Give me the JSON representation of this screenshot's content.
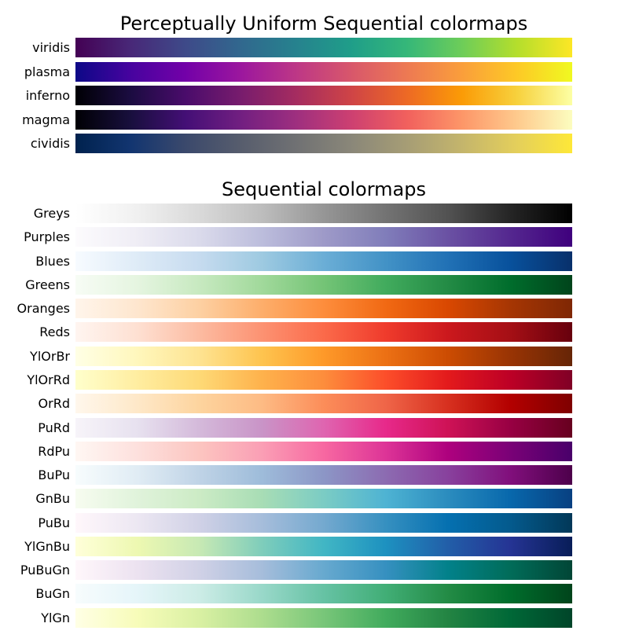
{
  "chart_data": [
    {
      "type": "heatmap",
      "title": "Perceptually Uniform Sequential colormaps",
      "colormaps": [
        {
          "name": "viridis",
          "colors": [
            "#440154",
            "#482878",
            "#3e4a89",
            "#31688e",
            "#26828e",
            "#1f9e89",
            "#35b779",
            "#6dcd59",
            "#b4de2c",
            "#fde725"
          ]
        },
        {
          "name": "plasma",
          "colors": [
            "#0d0887",
            "#47039f",
            "#7301a8",
            "#9c179e",
            "#bd3786",
            "#d8576b",
            "#ed7953",
            "#fa9e3b",
            "#fdc926",
            "#f0f921"
          ]
        },
        {
          "name": "inferno",
          "colors": [
            "#000004",
            "#1b0c41",
            "#4a0c6b",
            "#781c6d",
            "#a52c60",
            "#cf4446",
            "#ed6925",
            "#fb9b06",
            "#f7d13d",
            "#fcffa4"
          ]
        },
        {
          "name": "magma",
          "colors": [
            "#000004",
            "#180f3d",
            "#440f76",
            "#721f81",
            "#9e2f7f",
            "#cd4071",
            "#f1605d",
            "#fd9668",
            "#feca8d",
            "#fcfdbf"
          ]
        },
        {
          "name": "cividis",
          "colors": [
            "#00224e",
            "#123570",
            "#3b496c",
            "#575d6d",
            "#707173",
            "#8a8779",
            "#a69d75",
            "#c4b56c",
            "#e4cf5b",
            "#fee838"
          ]
        }
      ]
    },
    {
      "type": "heatmap",
      "title": "Sequential colormaps",
      "colormaps": [
        {
          "name": "Greys",
          "colors": [
            "#ffffff",
            "#f0f0f0",
            "#d9d9d9",
            "#bdbdbd",
            "#969696",
            "#737373",
            "#525252",
            "#252525",
            "#000000"
          ]
        },
        {
          "name": "Purples",
          "colors": [
            "#fcfbfd",
            "#efedf5",
            "#dadaeb",
            "#bcbddc",
            "#9e9ac8",
            "#807dba",
            "#6a51a3",
            "#54278f",
            "#3f007d"
          ]
        },
        {
          "name": "Blues",
          "colors": [
            "#f7fbff",
            "#deebf7",
            "#c6dbef",
            "#9ecae1",
            "#6baed6",
            "#4292c6",
            "#2171b5",
            "#08519c",
            "#08306b"
          ]
        },
        {
          "name": "Greens",
          "colors": [
            "#f7fcf5",
            "#e5f5e0",
            "#c7e9c0",
            "#a1d99b",
            "#74c476",
            "#41ab5d",
            "#238b45",
            "#006d2c",
            "#00441b"
          ]
        },
        {
          "name": "Oranges",
          "colors": [
            "#fff5eb",
            "#fee6ce",
            "#fdd0a2",
            "#fdae6b",
            "#fd8d3c",
            "#f16913",
            "#d94801",
            "#a63603",
            "#7f2704"
          ]
        },
        {
          "name": "Reds",
          "colors": [
            "#fff5f0",
            "#fee0d2",
            "#fcbba1",
            "#fc9272",
            "#fb6a4a",
            "#ef3b2c",
            "#cb181d",
            "#a50f15",
            "#67000d"
          ]
        },
        {
          "name": "YlOrBr",
          "colors": [
            "#ffffe5",
            "#fff7bc",
            "#fee391",
            "#fec44f",
            "#fe9929",
            "#ec7014",
            "#cc4c02",
            "#993404",
            "#662506"
          ]
        },
        {
          "name": "YlOrRd",
          "colors": [
            "#ffffcc",
            "#ffeda0",
            "#fed976",
            "#feb24c",
            "#fd8d3c",
            "#fc4e2a",
            "#e31a1c",
            "#bd0026",
            "#800026"
          ]
        },
        {
          "name": "OrRd",
          "colors": [
            "#fff7ec",
            "#fee8c8",
            "#fdd49e",
            "#fdbb84",
            "#fc8d59",
            "#ef6548",
            "#d7301f",
            "#b30000",
            "#7f0000"
          ]
        },
        {
          "name": "PuRd",
          "colors": [
            "#f7f4f9",
            "#e7e1ef",
            "#d4b9da",
            "#c994c7",
            "#df65b0",
            "#e7298a",
            "#ce1256",
            "#980043",
            "#67001f"
          ]
        },
        {
          "name": "RdPu",
          "colors": [
            "#fff7f3",
            "#fde0dd",
            "#fcc5c0",
            "#fa9fb5",
            "#f768a1",
            "#dd3497",
            "#ae017e",
            "#7a0177",
            "#49006a"
          ]
        },
        {
          "name": "BuPu",
          "colors": [
            "#f7fcfd",
            "#e0ecf4",
            "#bfd3e6",
            "#9ebcda",
            "#8c96c6",
            "#8c6bb1",
            "#88419d",
            "#810f7c",
            "#4d004b"
          ]
        },
        {
          "name": "GnBu",
          "colors": [
            "#f7fcf0",
            "#e0f3db",
            "#ccebc5",
            "#a8ddb5",
            "#7bccc4",
            "#4eb3d3",
            "#2b8cbe",
            "#0868ac",
            "#084081"
          ]
        },
        {
          "name": "PuBu",
          "colors": [
            "#fff7fb",
            "#ece7f2",
            "#d0d1e6",
            "#a6bddb",
            "#74a9cf",
            "#3690c0",
            "#0570b0",
            "#045a8d",
            "#023858"
          ]
        },
        {
          "name": "YlGnBu",
          "colors": [
            "#ffffd9",
            "#edf8b1",
            "#c7e9b4",
            "#7fcdbb",
            "#41b6c4",
            "#1d91c0",
            "#225ea8",
            "#253494",
            "#081d58"
          ]
        },
        {
          "name": "PuBuGn",
          "colors": [
            "#fff7fb",
            "#ece2f0",
            "#d0d1e6",
            "#a6bddb",
            "#67a9cf",
            "#3690c0",
            "#02818a",
            "#016c59",
            "#014636"
          ]
        },
        {
          "name": "BuGn",
          "colors": [
            "#f7fcfd",
            "#e5f5f9",
            "#ccece6",
            "#99d8c9",
            "#66c2a4",
            "#41ae76",
            "#238b45",
            "#006d2c",
            "#00441b"
          ]
        },
        {
          "name": "YlGn",
          "colors": [
            "#ffffe5",
            "#f7fcb9",
            "#d9f0a3",
            "#addd8e",
            "#78c679",
            "#41ab5d",
            "#238443",
            "#006837",
            "#004529"
          ]
        }
      ]
    }
  ]
}
